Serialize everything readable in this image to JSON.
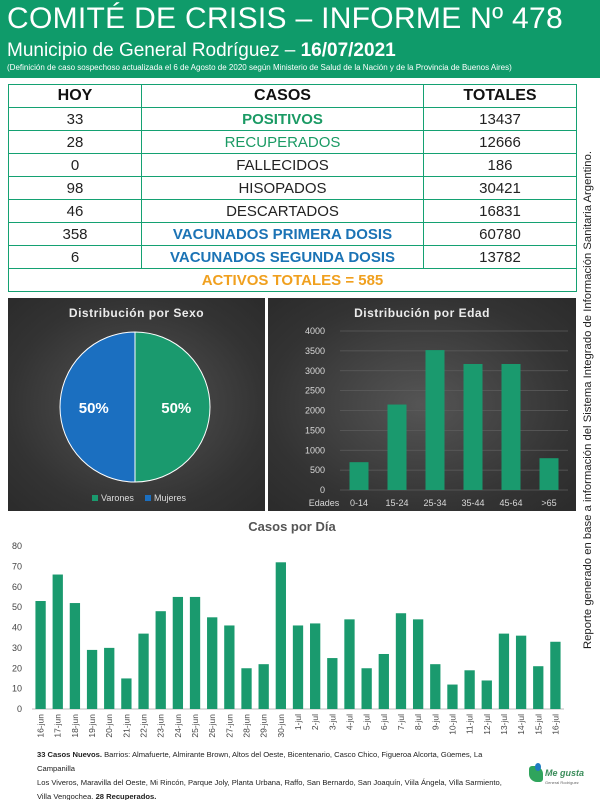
{
  "header": {
    "title": "COMITÉ DE CRISIS – INFORME Nº 478",
    "subtitle_prefix": "Municipio de General Rodríguez – ",
    "subtitle_date": "16/07/2021",
    "note": "(Definición de caso sospechoso actualizada el 6 de Agosto de 2020 según Ministerio de Salud de la Nación y de la Provincia de Buenos Aires)"
  },
  "table": {
    "headers": [
      "HOY",
      "CASOS",
      "TOTALES"
    ],
    "rows": [
      {
        "hoy": "33",
        "casos": "POSITIVOS",
        "totales": "13437"
      },
      {
        "hoy": "28",
        "casos": "RECUPERADOS",
        "totales": "12666"
      },
      {
        "hoy": "0",
        "casos": "FALLECIDOS",
        "totales": "186"
      },
      {
        "hoy": "98",
        "casos": "HISOPADOS",
        "totales": "30421"
      },
      {
        "hoy": "46",
        "casos": "DESCARTADOS",
        "totales": "16831"
      },
      {
        "hoy": "358",
        "casos": "VACUNADOS PRIMERA DOSIS",
        "totales": "60780"
      },
      {
        "hoy": "6",
        "casos": "VACUNADOS SEGUNDA DOSIS",
        "totales": "13782"
      }
    ],
    "activos": "ACTIVOS TOTALES = 585"
  },
  "colors": {
    "green": "#0f9b6a",
    "bar_green": "#1a9a6e",
    "blue": "#1b73b5",
    "orange": "#f0a01f",
    "pie_green": "#1a9a6e",
    "pie_blue": "#1b6fc0"
  },
  "side_text": "Reporte generado en base a información del Sistema Integrado de Información Sanitaria Argentino.",
  "chart_data": [
    {
      "type": "pie",
      "title": "Distribución por Sexo",
      "labels": [
        "Varones",
        "Mujeres"
      ],
      "values": [
        50,
        50
      ],
      "value_labels": [
        "50%",
        "50%"
      ],
      "legend": "bottom"
    },
    {
      "type": "bar",
      "title": "Distribución por Edad",
      "axis_category_label": "Edades",
      "categories": [
        "0-14",
        "15-24",
        "25-34",
        "35-44",
        "45-64",
        ">65"
      ],
      "values": [
        700,
        2150,
        3520,
        3170,
        3170,
        800
      ],
      "ylim": [
        0,
        4000
      ],
      "yticks": [
        0,
        500,
        1000,
        1500,
        2000,
        2500,
        3000,
        3500,
        4000
      ],
      "grid": true
    },
    {
      "type": "bar",
      "title": "Casos por Día",
      "categories": [
        "16-jun",
        "17-jun",
        "18-jun",
        "19-jun",
        "20-jun",
        "21-jun",
        "22-jun",
        "23-jun",
        "24-jun",
        "25-jun",
        "26-jun",
        "27-jun",
        "28-jun",
        "29-jun",
        "30-jun",
        "1-jul",
        "2-jul",
        "3-jul",
        "4-jul",
        "5-jul",
        "6-jul",
        "7-jul",
        "8-jul",
        "9-jul",
        "10-jul",
        "11-jul",
        "12-jul",
        "13-jul",
        "14-jul",
        "15-jul",
        "16-jul"
      ],
      "values": [
        53,
        66,
        52,
        29,
        30,
        15,
        37,
        48,
        55,
        55,
        45,
        41,
        20,
        22,
        72,
        41,
        42,
        25,
        44,
        20,
        27,
        47,
        44,
        22,
        12,
        19,
        14,
        37,
        36,
        21,
        33
      ],
      "ylim": [
        0,
        80
      ],
      "yticks": [
        0,
        10,
        20,
        30,
        40,
        50,
        60,
        70,
        80
      ],
      "grid": false
    }
  ],
  "footer": {
    "nuevos_bold": "33 Casos Nuevos.",
    "barrios_line1": " Barrios: Almafuerte, Almirante Brown, Altos del Oeste, Bicentenario, Casco Chico, Figueroa Alcorta, Güemes, La Campanilla",
    "barrios_line2": "Los Viveros, Maravilla del Oeste, Mi Rincón, Parque Joly, Planta Urbana, Raffo, San Bernardo, San Joaquín, Viila Ángela, Villa Sarmiento,",
    "barrios_line3": "Villa Vengochea. ",
    "recuperados_bold": "28 Recuperados."
  },
  "logo": {
    "name": "Me gusta",
    "sub": "General Rodríguez"
  }
}
